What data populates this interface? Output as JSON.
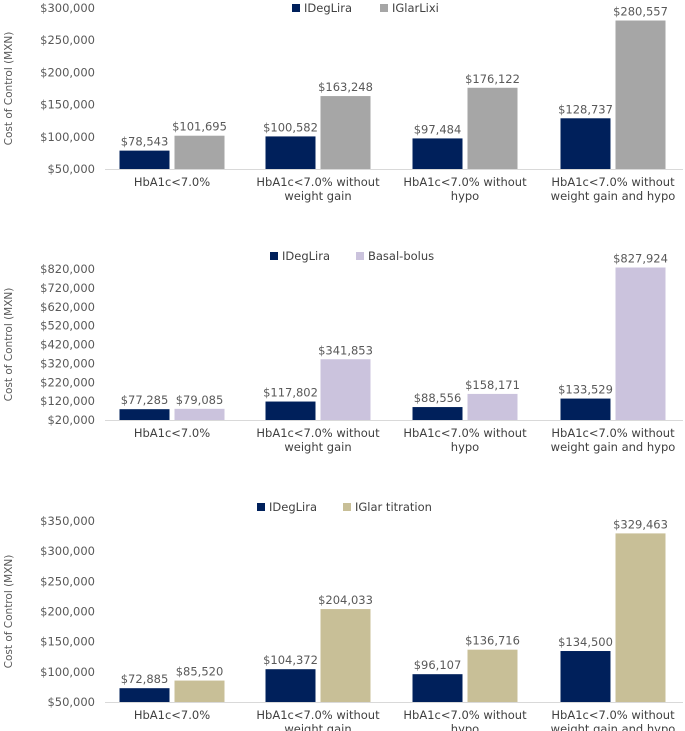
{
  "chart_data": [
    {
      "type": "bar",
      "title": "",
      "ylabel": "Cost of Control (MXN)",
      "xlabel": "",
      "ylim": [
        50000,
        300000
      ],
      "ytick_step": 50000,
      "categories": [
        [
          "HbA1c<7.0%"
        ],
        [
          "HbA1c<7.0% without",
          "weight gain"
        ],
        [
          "HbA1c<7.0% without",
          "hypo"
        ],
        [
          "HbA1c<7.0% without",
          "weight gain and hypo"
        ]
      ],
      "series": [
        {
          "name": "IDegLira",
          "color": "#00205b",
          "values": [
            78543,
            100582,
            97484,
            128737
          ],
          "labels": [
            "$78,543",
            "$100,582",
            "$97,484",
            "$128,737"
          ]
        },
        {
          "name": "IGlarLixi",
          "color": "#a6a6a6",
          "values": [
            101695,
            163248,
            176122,
            280557
          ],
          "labels": [
            "$101,695",
            "$163,248",
            "$176,122",
            "$280,557"
          ]
        }
      ],
      "legend": "top-center",
      "grid": false
    },
    {
      "type": "bar",
      "title": "",
      "ylabel": "Cost of Control (MXN)",
      "xlabel": "",
      "ylim": [
        20000,
        820000
      ],
      "ytick_step": 100000,
      "categories": [
        [
          "HbA1c<7.0%"
        ],
        [
          "HbA1c<7.0% without",
          "weight gain"
        ],
        [
          "HbA1c<7.0% without",
          "hypo"
        ],
        [
          "HbA1c<7.0% without",
          "weight gain and hypo"
        ]
      ],
      "series": [
        {
          "name": "IDegLira",
          "color": "#00205b",
          "values": [
            77285,
            117802,
            88556,
            133529
          ],
          "labels": [
            "$77,285",
            "$117,802",
            "$88,556",
            "$133,529"
          ]
        },
        {
          "name": "Basal-bolus",
          "color": "#cbc3dd",
          "values": [
            79085,
            341853,
            158171,
            827924
          ],
          "labels": [
            "$79,085",
            "$341,853",
            "$158,171",
            "$827,924"
          ]
        }
      ],
      "legend": "top-center",
      "grid": false
    },
    {
      "type": "bar",
      "title": "",
      "ylabel": "Cost of Control (MXN)",
      "xlabel": "",
      "ylim": [
        50000,
        350000
      ],
      "ytick_step": 50000,
      "categories": [
        [
          "HbA1c<7.0%"
        ],
        [
          "HbA1c<7.0% without",
          "weight gain"
        ],
        [
          "HbA1c<7.0% without",
          "hypo"
        ],
        [
          "HbA1c<7.0% without",
          "weight gain and hypo"
        ]
      ],
      "series": [
        {
          "name": "IDegLira",
          "color": "#00205b",
          "values": [
            72885,
            104372,
            96107,
            134500
          ],
          "labels": [
            "$72,885",
            "$104,372",
            "$96,107",
            "$134,500"
          ]
        },
        {
          "name": "IGlar titration",
          "color": "#c8bf97",
          "values": [
            85520,
            204033,
            136716,
            329463
          ],
          "labels": [
            "$85,520",
            "$204,033",
            "$136,716",
            "$329,463"
          ]
        }
      ],
      "legend": "top-center",
      "grid": false
    }
  ]
}
